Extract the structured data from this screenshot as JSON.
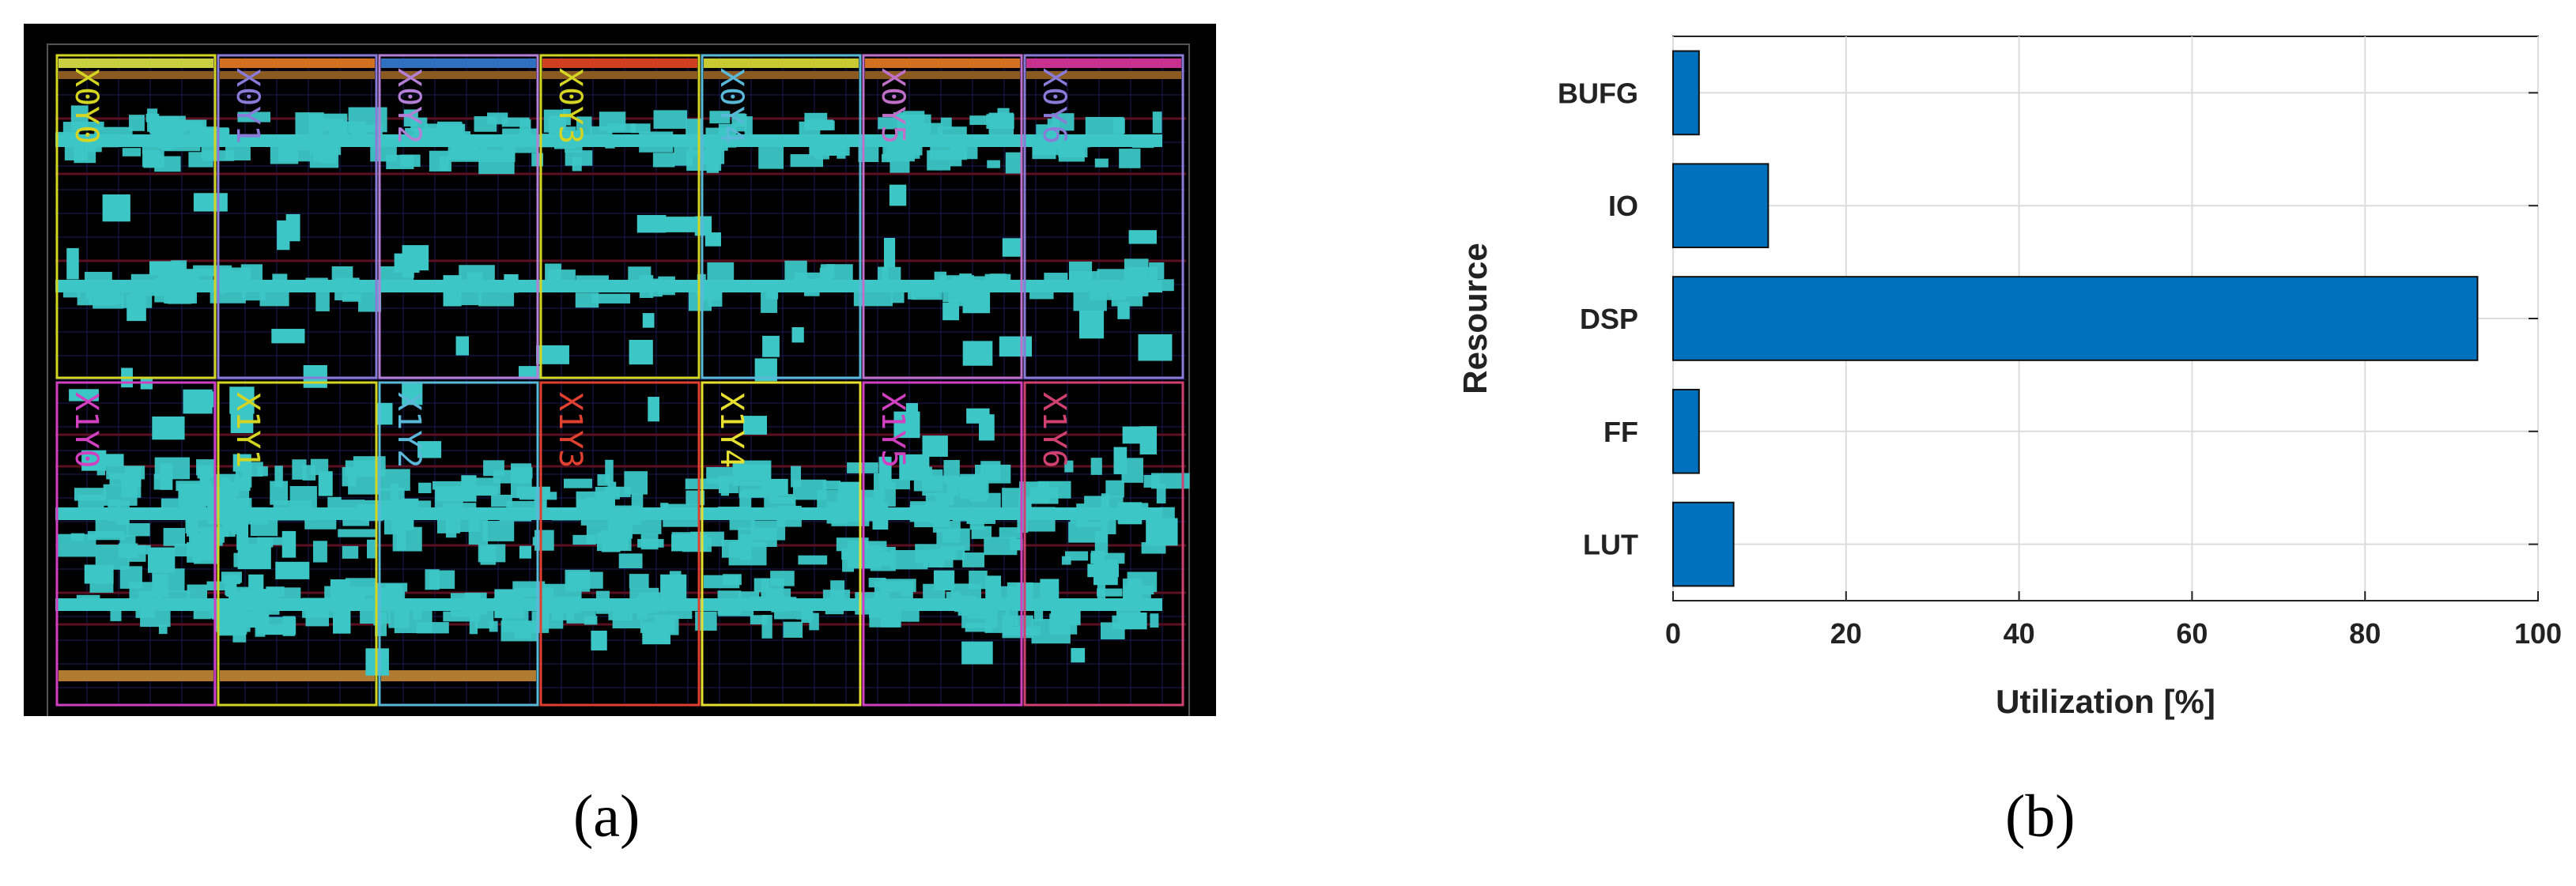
{
  "panel_a": {
    "caption": "(a)",
    "colors": {
      "background": "#000000",
      "logic": "#3cc6c6",
      "grid": "#1a1a5a"
    },
    "regions": [
      {
        "label": "X0Y0",
        "color": "#d4d423"
      },
      {
        "label": "X0Y1",
        "color": "#8a7bd8"
      },
      {
        "label": "X0Y2",
        "color": "#b47fd6"
      },
      {
        "label": "X0Y3",
        "color": "#d4d423"
      },
      {
        "label": "X0Y4",
        "color": "#5ab8d8"
      },
      {
        "label": "X0Y5",
        "color": "#c070c8"
      },
      {
        "label": "X0Y6",
        "color": "#8a7bd8"
      },
      {
        "label": "X1Y0",
        "color": "#d040c0"
      },
      {
        "label": "X1Y1",
        "color": "#d4d423"
      },
      {
        "label": "X1Y2",
        "color": "#5ab8d8"
      },
      {
        "label": "X1Y3",
        "color": "#e04030"
      },
      {
        "label": "X1Y4",
        "color": "#e8e030"
      },
      {
        "label": "X1Y5",
        "color": "#d040c0"
      },
      {
        "label": "X1Y6",
        "color": "#d04070"
      }
    ]
  },
  "chart_data": {
    "caption": "(b)",
    "type": "bar",
    "orientation": "horizontal",
    "categories": [
      "BUFG",
      "IO",
      "DSP",
      "FF",
      "LUT"
    ],
    "values": [
      3,
      11,
      93,
      3,
      7
    ],
    "xlabel": "Utilization [%]",
    "ylabel": "Resource",
    "xlim": [
      0,
      100
    ],
    "xticks": [
      "0",
      "20",
      "40",
      "60",
      "80",
      "100"
    ],
    "grid": true,
    "bar_color": "#0072bd"
  }
}
